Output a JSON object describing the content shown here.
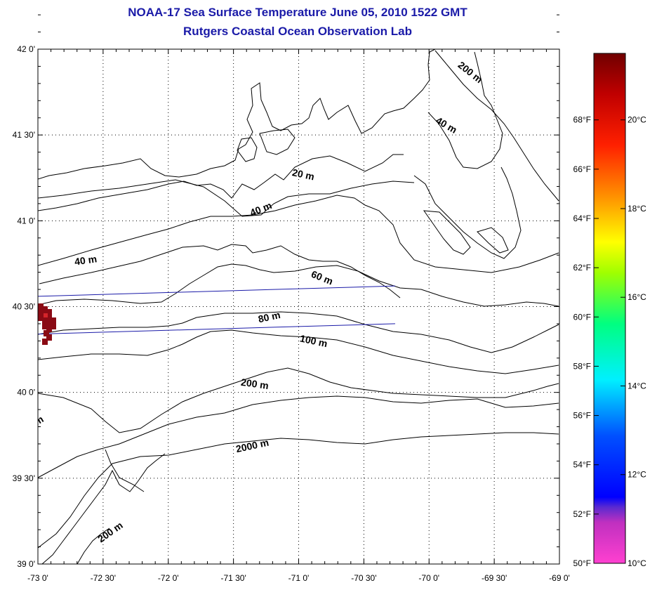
{
  "title": {
    "line1": "NOAA-17 Sea Surface Temperature June 05, 2010 1522 GMT",
    "line2": "Rutgers Coastal Ocean Observation Lab"
  },
  "map": {
    "lon_range": [
      -73.0,
      -69.0
    ],
    "lat_range": [
      39.0,
      42.0
    ],
    "grid": "dotted",
    "lon_ticks": [
      {
        "value": -73.0,
        "label": "-73 0'"
      },
      {
        "value": -72.5,
        "label": "-72 30'"
      },
      {
        "value": -72.0,
        "label": "-72 0'"
      },
      {
        "value": -71.5,
        "label": "-71 30'"
      },
      {
        "value": -71.0,
        "label": "-71 0'"
      },
      {
        "value": -70.5,
        "label": "-70 30'"
      },
      {
        "value": -70.0,
        "label": "-70 0'"
      },
      {
        "value": -69.5,
        "label": "-69 30'"
      },
      {
        "value": -69.0,
        "label": "-69 0'"
      }
    ],
    "lat_ticks": [
      {
        "value": 42.0,
        "label": "42 0'"
      },
      {
        "value": 41.5,
        "label": "41 30'"
      },
      {
        "value": 41.0,
        "label": "41 0'"
      },
      {
        "value": 40.5,
        "label": "40 30'"
      },
      {
        "value": 40.0,
        "label": "40 0'"
      },
      {
        "value": 39.5,
        "label": "39 30'"
      },
      {
        "value": 39.0,
        "label": "39 0'"
      }
    ],
    "isobath_labels": [
      {
        "text": "200 m",
        "lon": -69.7,
        "lat": 41.85,
        "angle": 38
      },
      {
        "text": "40 m",
        "lon": -69.88,
        "lat": 41.54,
        "angle": 30
      },
      {
        "text": "20 m",
        "lon": -70.97,
        "lat": 41.25,
        "angle": 12
      },
      {
        "text": "40 m",
        "lon": -71.28,
        "lat": 41.05,
        "angle": -22
      },
      {
        "text": "40 m",
        "lon": -72.63,
        "lat": 40.75,
        "angle": -8
      },
      {
        "text": "60 m",
        "lon": -70.83,
        "lat": 40.65,
        "angle": 22
      },
      {
        "text": "80 m",
        "lon": -71.22,
        "lat": 40.42,
        "angle": -12
      },
      {
        "text": "100 m",
        "lon": -70.89,
        "lat": 40.28,
        "angle": 12
      },
      {
        "text": "200 m",
        "lon": -71.34,
        "lat": 40.03,
        "angle": 8
      },
      {
        "text": "2000 m",
        "lon": -71.35,
        "lat": 39.67,
        "angle": -12
      },
      {
        "text": "200 m",
        "lon": -72.43,
        "lat": 39.17,
        "angle": -35
      },
      {
        "text": "m",
        "lon": -72.98,
        "lat": 39.82,
        "angle": -30
      }
    ],
    "satellite_track": {
      "color": "#1a1aa8",
      "line_top": [
        [
          -73.0,
          40.56
        ],
        [
          -70.26,
          40.62
        ]
      ],
      "line_bottom": [
        [
          -73.0,
          40.34
        ],
        [
          -70.26,
          40.4
        ]
      ]
    },
    "sst_patch_color": "#8a0a14"
  },
  "colorbar": {
    "range_c": [
      10,
      21.5
    ],
    "celsius_labels": [
      "10°C",
      "12°C",
      "14°C",
      "16°C",
      "18°C",
      "20°C"
    ],
    "fahrenheit_labels": [
      "50°F",
      "52°F",
      "54°F",
      "56°F",
      "58°F",
      "60°F",
      "62°F",
      "64°F",
      "66°F",
      "68°F"
    ],
    "color_stops": [
      {
        "pos": 0.0,
        "color": "#ff40d0"
      },
      {
        "pos": 0.08,
        "color": "#c030c0"
      },
      {
        "pos": 0.11,
        "color": "#5a2ad0"
      },
      {
        "pos": 0.13,
        "color": "#0000ff"
      },
      {
        "pos": 0.25,
        "color": "#0050ff"
      },
      {
        "pos": 0.36,
        "color": "#00f0ff"
      },
      {
        "pos": 0.47,
        "color": "#00ff80"
      },
      {
        "pos": 0.57,
        "color": "#a0ff00"
      },
      {
        "pos": 0.63,
        "color": "#ffff00"
      },
      {
        "pos": 0.72,
        "color": "#ff9000"
      },
      {
        "pos": 0.82,
        "color": "#ff2000"
      },
      {
        "pos": 0.92,
        "color": "#c00000"
      },
      {
        "pos": 1.0,
        "color": "#700000"
      }
    ]
  }
}
